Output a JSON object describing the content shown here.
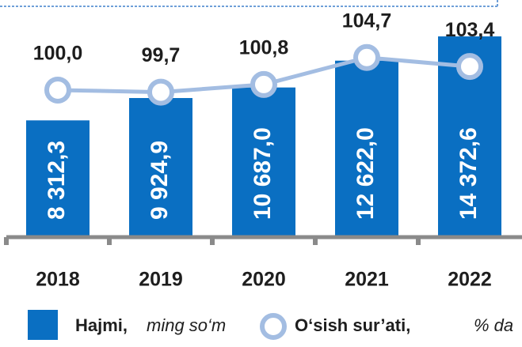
{
  "chart_data": {
    "type": "bar_line",
    "categories": [
      "2018",
      "2019",
      "2020",
      "2021",
      "2022"
    ],
    "series": [
      {
        "name": "Hajmi,",
        "unit": "ming so‘m",
        "color": "#0a6fc2",
        "values": [
          8312.3,
          9924.9,
          10687.0,
          12622.0,
          14372.6
        ],
        "value_labels": [
          "8 312,3",
          "9 924,9",
          "10 687,0",
          "12 622,0",
          "14 372,6"
        ]
      },
      {
        "name": "O‘sish sur’ati,",
        "unit": "% da",
        "color": "#a3bde2",
        "axis": "y2",
        "values": [
          100.0,
          99.7,
          100.8,
          104.7,
          103.4
        ],
        "value_labels": [
          "100,0",
          "99,7",
          "100,8",
          "104,7",
          "103,4"
        ]
      }
    ],
    "ylim": [
      0,
      17000
    ],
    "y2lim": [
      79,
      113
    ]
  }
}
